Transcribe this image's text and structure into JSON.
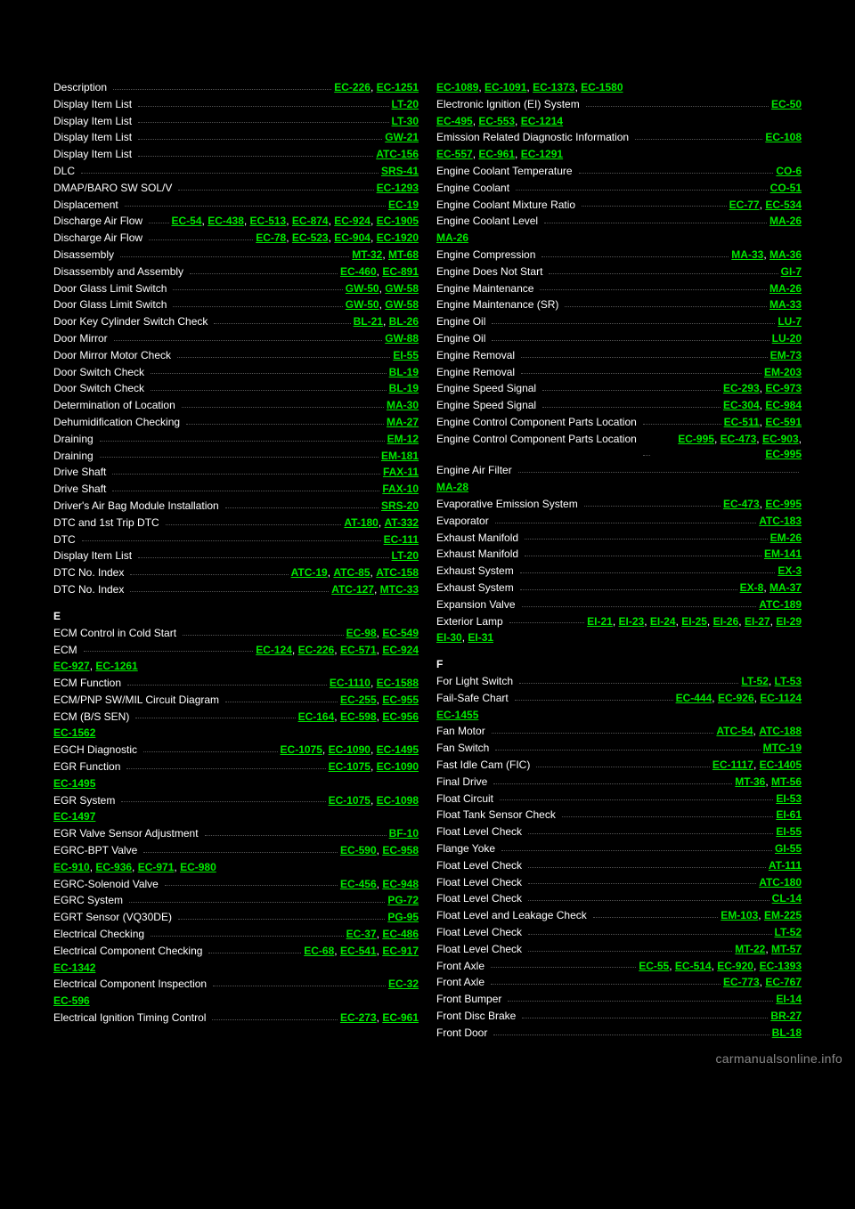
{
  "watermark": "carmanualsonline.info",
  "columns": [
    {
      "items": [
        {
          "type": "entry",
          "label": "Description",
          "refs": [
            "EC-226",
            "EC-1251"
          ]
        },
        {
          "type": "entry",
          "label": "Display Item List",
          "refs": [
            "LT-20"
          ]
        },
        {
          "type": "entry",
          "label": "Display Item List",
          "refs": [
            "LT-30"
          ]
        },
        {
          "type": "entry",
          "label": "Display Item List",
          "refs": [
            "GW-21"
          ]
        },
        {
          "type": "entry",
          "label": "Display Item List",
          "refs": [
            "ATC-156"
          ]
        },
        {
          "type": "entry",
          "label": "DLC",
          "refs": [
            "SRS-41"
          ]
        },
        {
          "type": "entry",
          "label": "DMAP/BARO SW SOL/V",
          "refs": [
            "EC-1293"
          ]
        },
        {
          "type": "entry",
          "label": "Displacement",
          "refs": [
            "EC-19"
          ]
        },
        {
          "type": "entry",
          "label": "Discharge Air Flow",
          "refs": [
            "EC-54",
            "EC-438",
            "EC-513",
            "EC-874",
            "EC-924",
            "EC-1905"
          ]
        },
        {
          "type": "entry",
          "label": "Discharge Air Flow",
          "refs": [
            "EC-78",
            "EC-523",
            "EC-904",
            "EC-1920"
          ]
        },
        {
          "type": "entry",
          "label": "Disassembly",
          "refs": [
            "MT-32",
            "MT-68"
          ]
        },
        {
          "type": "entry",
          "label": "Disassembly and Assembly",
          "refs": [
            "EC-460",
            "EC-891"
          ]
        },
        {
          "type": "entry",
          "label": "Door Glass Limit Switch",
          "refs": [
            "GW-50",
            "GW-58"
          ]
        },
        {
          "type": "entry",
          "label": "Door Glass Limit Switch",
          "refs": [
            "GW-50",
            "GW-58"
          ]
        },
        {
          "type": "entry",
          "label": "Door Key Cylinder Switch Check",
          "refs": [
            "BL-21",
            "BL-26"
          ]
        },
        {
          "type": "entry",
          "label": "Door Mirror",
          "refs": [
            "GW-88"
          ]
        },
        {
          "type": "entry",
          "label": "Door Mirror Motor Check",
          "refs": [
            "EI-55"
          ]
        },
        {
          "type": "entry",
          "label": "Door Switch Check",
          "refs": [
            "BL-19"
          ]
        },
        {
          "type": "entry",
          "label": "Door Switch Check",
          "refs": [
            "BL-19"
          ]
        },
        {
          "type": "entry",
          "label": "Determination of Location",
          "refs": [
            "MA-30"
          ]
        },
        {
          "type": "entry",
          "label": "Dehumidification Checking",
          "refs": [
            "MA-27"
          ]
        },
        {
          "type": "entry",
          "label": "Draining",
          "refs": [
            "EM-12"
          ]
        },
        {
          "type": "entry",
          "label": "Draining",
          "refs": [
            "EM-181"
          ]
        },
        {
          "type": "entry",
          "label": "Drive Shaft",
          "refs": [
            "FAX-11"
          ]
        },
        {
          "type": "entry",
          "label": "Drive Shaft",
          "refs": [
            "FAX-10"
          ]
        },
        {
          "type": "entry",
          "label": "Driver's Air Bag Module Installation",
          "refs": [
            "SRS-20"
          ]
        },
        {
          "type": "entry",
          "label": "DTC and 1st Trip DTC",
          "refs": [
            "AT-180",
            "AT-332"
          ]
        },
        {
          "type": "entry",
          "label": "DTC",
          "refs": [
            "EC-111"
          ]
        },
        {
          "type": "entry",
          "label": "Display Item List",
          "refs": [
            "LT-20"
          ]
        },
        {
          "type": "entry",
          "label": "DTC No. Index",
          "refs": [
            "ATC-19",
            "ATC-85",
            "ATC-158"
          ]
        },
        {
          "type": "entry",
          "label": "DTC No. Index",
          "refs": [
            "ATC-127",
            "MTC-33"
          ]
        },
        {
          "type": "section",
          "label": "E"
        },
        {
          "type": "entry",
          "label": "ECM Control in Cold Start",
          "refs": [
            "EC-98",
            "EC-549"
          ]
        },
        {
          "type": "entry",
          "label": "ECM",
          "refs": [
            "EC-124",
            "EC-226",
            "EC-571",
            "EC-924"
          ]
        },
        {
          "type": "cont",
          "refs": [
            "EC-927",
            "EC-1261"
          ]
        },
        {
          "type": "entry",
          "label": "ECM Function",
          "refs": [
            "EC-1110",
            "EC-1588"
          ]
        },
        {
          "type": "entry",
          "label": "ECM/PNP SW/MIL Circuit Diagram",
          "refs": [
            "EC-255",
            "EC-955"
          ]
        },
        {
          "type": "entry",
          "label": "ECM (B/S SEN)",
          "refs": [
            "EC-164",
            "EC-598",
            "EC-956"
          ]
        },
        {
          "type": "cont",
          "refs": [
            "EC-1562"
          ]
        },
        {
          "type": "entry",
          "label": "EGCH Diagnostic",
          "refs": [
            "EC-1075",
            "EC-1090",
            "EC-1495"
          ]
        },
        {
          "type": "entry",
          "label": "EGR Function",
          "refs": [
            "EC-1075",
            "EC-1090"
          ]
        },
        {
          "type": "cont",
          "refs": [
            "EC-1495"
          ]
        },
        {
          "type": "entry",
          "label": "EGR System",
          "refs": [
            "EC-1075",
            "EC-1098"
          ]
        },
        {
          "type": "cont",
          "refs": [
            "EC-1497"
          ]
        },
        {
          "type": "entry",
          "label": "EGR Valve Sensor Adjustment",
          "refs": [
            "BF-10"
          ]
        },
        {
          "type": "entry",
          "label": "EGRC-BPT Valve",
          "refs": [
            "EC-590",
            "EC-958"
          ]
        },
        {
          "type": "cont",
          "refs": [
            "EC-910",
            "EC-936",
            "EC-971",
            "EC-980"
          ]
        },
        {
          "type": "entry",
          "label": "EGRC-Solenoid Valve",
          "refs": [
            "EC-456",
            "EC-948"
          ]
        },
        {
          "type": "entry",
          "label": "EGRC System",
          "refs": [
            "PG-72"
          ]
        },
        {
          "type": "entry",
          "label": "EGRT Sensor (VQ30DE)",
          "refs": [
            "PG-95"
          ]
        },
        {
          "type": "entry",
          "label": "Electrical Checking",
          "refs": [
            "EC-37",
            "EC-486"
          ]
        },
        {
          "type": "entry",
          "label": "Electrical Component Checking",
          "refs": [
            "EC-68",
            "EC-541",
            "EC-917"
          ]
        },
        {
          "type": "cont",
          "refs": [
            "EC-1342"
          ]
        },
        {
          "type": "entry",
          "label": "Electrical Component Inspection",
          "refs": [
            "EC-32"
          ]
        },
        {
          "type": "cont",
          "refs": [
            "EC-596"
          ]
        },
        {
          "type": "entry",
          "label": "Electrical Ignition Timing Control",
          "refs": [
            "EC-273",
            "EC-961"
          ]
        }
      ]
    },
    {
      "items": [
        {
          "type": "cont",
          "refs": [
            "EC-1089",
            "EC-1091",
            "EC-1373",
            "EC-1580"
          ]
        },
        {
          "type": "entry",
          "label": "Electronic Ignition (EI) System",
          "refs": [
            "EC-50"
          ]
        },
        {
          "type": "cont",
          "refs": [
            "EC-495",
            "EC-553",
            "EC-1214"
          ]
        },
        {
          "type": "entry",
          "label": "Emission Related Diagnostic Information",
          "refs": [
            "EC-108"
          ]
        },
        {
          "type": "cont",
          "refs": [
            "EC-557",
            "EC-961",
            "EC-1291"
          ]
        },
        {
          "type": "entry",
          "label": "Engine Coolant Temperature",
          "refs": [
            "CO-6"
          ]
        },
        {
          "type": "entry",
          "label": "Engine Coolant",
          "refs": [
            "CO-51"
          ]
        },
        {
          "type": "entry",
          "label": "Engine Coolant Mixture Ratio",
          "refs": [
            "EC-77",
            "EC-534"
          ]
        },
        {
          "type": "entry",
          "label": "Engine Coolant Level",
          "refs": [
            "MA-26"
          ]
        },
        {
          "type": "cont",
          "refs": [
            "MA-26"
          ]
        },
        {
          "type": "entry",
          "label": "Engine Compression",
          "refs": [
            "MA-33",
            "MA-36"
          ]
        },
        {
          "type": "entry",
          "label": "Engine Does Not Start",
          "refs": [
            "GI-7"
          ]
        },
        {
          "type": "entry",
          "label": "Engine Maintenance",
          "refs": [
            "MA-26"
          ]
        },
        {
          "type": "entry",
          "label": "Engine Maintenance (SR)",
          "refs": [
            "MA-33"
          ]
        },
        {
          "type": "entry",
          "label": "Engine Oil",
          "refs": [
            "LU-7"
          ]
        },
        {
          "type": "entry",
          "label": "Engine Oil",
          "refs": [
            "LU-20"
          ]
        },
        {
          "type": "entry",
          "label": "Engine Removal",
          "refs": [
            "EM-73"
          ]
        },
        {
          "type": "entry",
          "label": "Engine Removal",
          "refs": [
            "EM-203"
          ]
        },
        {
          "type": "entry",
          "label": "Engine Speed Signal",
          "refs": [
            "EC-293",
            "EC-973"
          ]
        },
        {
          "type": "entry",
          "label": "Engine Speed Signal",
          "refs": [
            "EC-304",
            "EC-984"
          ]
        },
        {
          "type": "entry",
          "label": "Engine Control Component Parts Location",
          "refs": [
            "EC-511",
            "EC-591"
          ]
        },
        {
          "type": "entry",
          "label": "Engine Control Component Parts Location",
          "refs": [
            "EC-995",
            "EC-473",
            "EC-903",
            "EC-995"
          ]
        },
        {
          "type": "entry",
          "label": "Engine Air Filter",
          "refs": []
        },
        {
          "type": "cont",
          "refs": [
            "MA-28"
          ]
        },
        {
          "type": "entry",
          "label": "Evaporative Emission System",
          "refs": [
            "EC-473",
            "EC-995"
          ]
        },
        {
          "type": "entry",
          "label": "Evaporator",
          "refs": [
            "ATC-183"
          ]
        },
        {
          "type": "entry",
          "label": "Exhaust Manifold",
          "refs": [
            "EM-26"
          ]
        },
        {
          "type": "entry",
          "label": "Exhaust Manifold",
          "refs": [
            "EM-141"
          ]
        },
        {
          "type": "entry",
          "label": "Exhaust System",
          "refs": [
            "EX-3"
          ]
        },
        {
          "type": "entry",
          "label": "Exhaust System",
          "refs": [
            "EX-8",
            "MA-37"
          ]
        },
        {
          "type": "entry",
          "label": "Expansion Valve",
          "refs": [
            "ATC-189"
          ]
        },
        {
          "type": "entry",
          "label": "Exterior Lamp",
          "refs": [
            "EI-21",
            "EI-23",
            "EI-24",
            "EI-25",
            "EI-26",
            "EI-27",
            "EI-29"
          ]
        },
        {
          "type": "cont",
          "refs": [
            "EI-30",
            "EI-31"
          ]
        },
        {
          "type": "section",
          "label": "F"
        },
        {
          "type": "entry",
          "label": "For Light Switch",
          "refs": [
            "LT-52",
            "LT-53"
          ]
        },
        {
          "type": "entry",
          "label": "Fail-Safe Chart",
          "refs": [
            "EC-444",
            "EC-926",
            "EC-1124"
          ]
        },
        {
          "type": "cont",
          "refs": [
            "EC-1455"
          ]
        },
        {
          "type": "entry",
          "label": "Fan Motor",
          "refs": [
            "ATC-54",
            "ATC-188"
          ]
        },
        {
          "type": "entry",
          "label": "Fan Switch",
          "refs": [
            "MTC-19"
          ]
        },
        {
          "type": "entry",
          "label": "Fast Idle Cam (FIC)",
          "refs": [
            "EC-1117",
            "EC-1405"
          ]
        },
        {
          "type": "entry",
          "label": "Final Drive",
          "refs": [
            "MT-36",
            "MT-56"
          ]
        },
        {
          "type": "entry",
          "label": "Float Circuit",
          "refs": [
            "EI-53"
          ]
        },
        {
          "type": "entry",
          "label": "Float Tank Sensor Check",
          "refs": [
            "EI-61"
          ]
        },
        {
          "type": "entry",
          "label": "Float Level Check",
          "refs": [
            "EI-55"
          ]
        },
        {
          "type": "entry",
          "label": "Flange Yoke",
          "refs": [
            "GI-55"
          ]
        },
        {
          "type": "entry",
          "label": "Float Level Check",
          "refs": [
            "AT-111"
          ]
        },
        {
          "type": "entry",
          "label": "Float Level Check",
          "refs": [
            "ATC-180"
          ]
        },
        {
          "type": "entry",
          "label": "Float Level Check",
          "refs": [
            "CL-14"
          ]
        },
        {
          "type": "entry",
          "label": "Float Level and Leakage Check",
          "refs": [
            "EM-103",
            "EM-225"
          ]
        },
        {
          "type": "entry",
          "label": "Float Level Check",
          "refs": [
            "LT-52"
          ]
        },
        {
          "type": "entry",
          "label": "Float Level Check",
          "refs": [
            "MT-22",
            "MT-57"
          ]
        },
        {
          "type": "entry",
          "label": "Front Axle",
          "refs": [
            "EC-55",
            "EC-514",
            "EC-920",
            "EC-1393"
          ]
        },
        {
          "type": "entry",
          "label": "Front Axle",
          "refs": [
            "EC-773",
            "EC-767"
          ]
        },
        {
          "type": "entry",
          "label": "Front Bumper",
          "refs": [
            "EI-14"
          ]
        },
        {
          "type": "entry",
          "label": "Front Disc Brake",
          "refs": [
            "BR-27"
          ]
        },
        {
          "type": "entry",
          "label": "Front Door",
          "refs": [
            "BL-18"
          ]
        }
      ]
    }
  ]
}
